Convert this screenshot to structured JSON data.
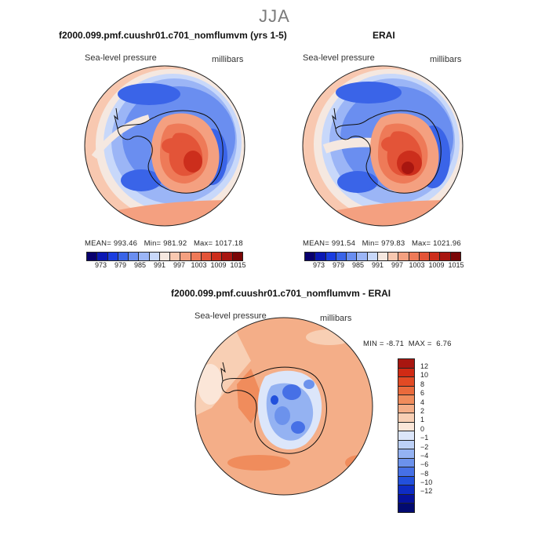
{
  "figure": {
    "season": "JJA",
    "panels": [
      {
        "title": "f2000.099.pmf.cuushr01.c701_nomflumvm (yrs 1-5)",
        "variable": "Sea-level pressure",
        "units": "millibars",
        "stats": {
          "mean_label": "MEAN=",
          "mean": "993.46",
          "min_label": "Min=",
          "min": "981.92",
          "max_label": "Max=",
          "max": "1017.18"
        }
      },
      {
        "title": "ERAI",
        "variable": "Sea-level pressure",
        "units": "millibars",
        "stats": {
          "mean_label": "MEAN=",
          "mean": "991.54",
          "min_label": "Min=",
          "min": "979.83",
          "max_label": "Max=",
          "max": "1021.96"
        }
      },
      {
        "title": "f2000.099.pmf.cuushr01.c701_nomflumvm - ERAI",
        "variable": "Sea-level pressure",
        "units": "millibars",
        "stats": {
          "min_label": "MIN =",
          "min": "-8.71",
          "max_label": "MAX =",
          "max": "6.76"
        }
      }
    ],
    "abs_colorbar": {
      "colors": [
        "#08006e",
        "#0a18b4",
        "#1a3de0",
        "#3a64e8",
        "#6a8ef0",
        "#9bb5f6",
        "#c8d8fa",
        "#f5e8e0",
        "#f8c8b0",
        "#f4a080",
        "#ee7a58",
        "#e35438",
        "#cc2e1c",
        "#a81610",
        "#7a0606"
      ],
      "labels": [
        "973",
        "979",
        "985",
        "991",
        "997",
        "1003",
        "1009",
        "1015"
      ]
    },
    "diff_colorbar": {
      "colors": [
        "#a81610",
        "#d02a14",
        "#e24a24",
        "#ea6a3c",
        "#f08c5c",
        "#f4ae88",
        "#f8cfb4",
        "#fbe6d8",
        "#dce6fa",
        "#bcd0f6",
        "#94b2f2",
        "#6c92ec",
        "#4670e6",
        "#2250dc",
        "#0e2cc4",
        "#06129c",
        "#020a70"
      ],
      "labels": [
        "12",
        "10",
        "8",
        "6",
        "4",
        "2",
        "1",
        "0",
        "−1",
        "−2",
        "−4",
        "−6",
        "−8",
        "−10",
        "−12"
      ]
    }
  }
}
